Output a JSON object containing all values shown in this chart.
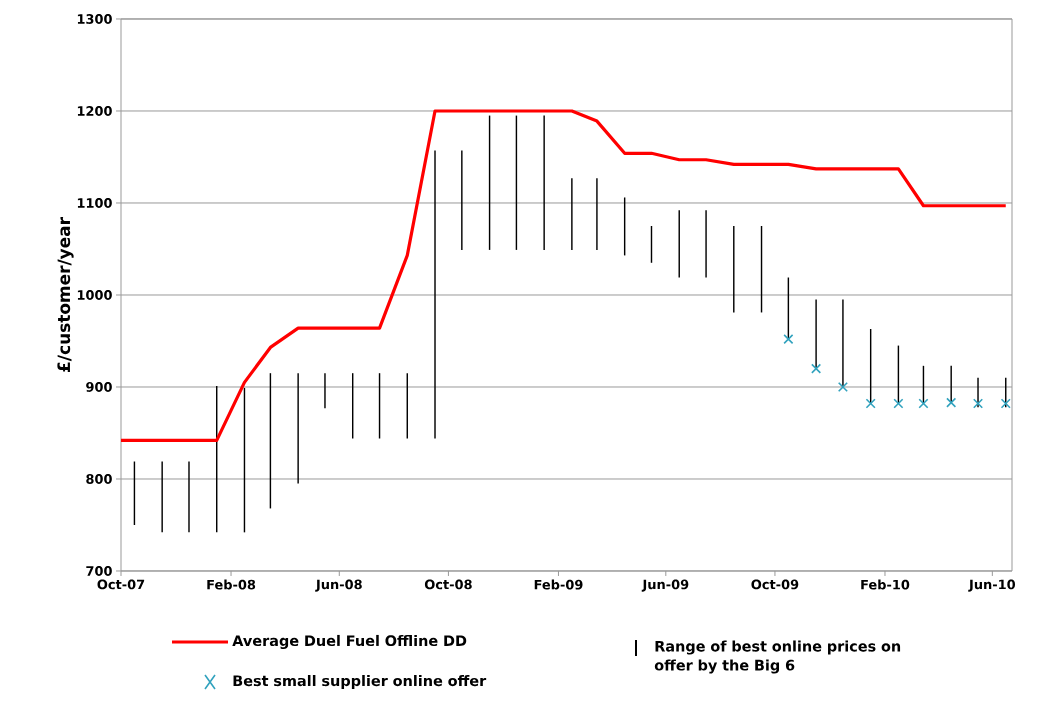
{
  "chart_data": {
    "type": "line",
    "ylabel": "£/customer/year",
    "x": [
      "2007-10-16",
      "2007-11-16",
      "2007-12-16",
      "2008-01-16",
      "2008-02-16",
      "2008-03-16",
      "2008-04-16",
      "2008-05-16",
      "2008-06-16",
      "2008-07-16",
      "2008-08-16",
      "2008-09-16",
      "2008-10-16",
      "2008-11-16",
      "2008-12-16",
      "2009-01-16",
      "2009-02-16",
      "2009-03-16",
      "2009-04-16",
      "2009-05-16",
      "2009-06-16",
      "2009-07-16",
      "2009-08-16",
      "2009-09-16",
      "2009-10-16",
      "2009-11-16",
      "2009-12-16",
      "2010-01-16",
      "2010-02-16",
      "2010-03-16",
      "2010-04-16",
      "2010-05-16",
      "2010-06-16"
    ],
    "series": [
      {
        "name": "Average Duel Fuel Offline DD",
        "color": "#ff0000",
        "marker": "none",
        "x": [
          "2007-10-01",
          "2008-01-16",
          "2008-02-16",
          "2008-03-16",
          "2008-04-16",
          "2008-07-16",
          "2008-08-16",
          "2008-09-16",
          "2009-01-16",
          "2009-02-16",
          "2009-03-16",
          "2009-04-16",
          "2009-05-16",
          "2009-06-16",
          "2009-07-16",
          "2009-08-16",
          "2009-09-16",
          "2009-10-16",
          "2009-11-16",
          "2010-01-16",
          "2010-02-16",
          "2010-03-16",
          "2010-06-16"
        ],
        "values": [
          842,
          842,
          905,
          943,
          964,
          964,
          1043,
          1200,
          1200,
          1200,
          1189,
          1154,
          1154,
          1147,
          1147,
          1142,
          1142,
          1142,
          1137,
          1137,
          1137,
          1097,
          1097
        ]
      },
      {
        "name": "Best small supplier online offer",
        "type": "scatter",
        "color": "#31a2be",
        "marker": "cross",
        "x": [
          "2009-10-16",
          "2009-11-16",
          "2009-12-16",
          "2010-01-16",
          "2010-02-16",
          "2010-03-16",
          "2010-04-16",
          "2010-05-16",
          "2010-06-16"
        ],
        "values": [
          952,
          920,
          900,
          882,
          882,
          882,
          883,
          882,
          882
        ]
      },
      {
        "name": "Range of best online prices on offer by the Big 6",
        "type": "bar",
        "color": "#000000",
        "base": [
          750,
          742,
          742,
          742,
          742,
          768,
          795,
          877,
          844,
          844,
          844,
          844,
          1049,
          1049,
          1049,
          1049,
          1049,
          1049,
          1043,
          1035,
          1019,
          1019,
          981,
          981,
          952,
          920,
          900,
          882,
          882,
          882,
          883,
          878,
          878
        ],
        "values": [
          69,
          77,
          77,
          159,
          157,
          147,
          120,
          38,
          71,
          71,
          71,
          313,
          108,
          146,
          146,
          146,
          78,
          78,
          63,
          40,
          73,
          73,
          94,
          94,
          67,
          75,
          95,
          81,
          63,
          41,
          40,
          32,
          32
        ]
      }
    ],
    "xlim": [
      "2007-10-01",
      "2010-06-23"
    ],
    "xticks": [
      {
        "value": "2007-10-01",
        "label": "Oct-07"
      },
      {
        "value": "2008-02-01",
        "label": "Feb-08"
      },
      {
        "value": "2008-06-01",
        "label": "Jun-08"
      },
      {
        "value": "2008-10-01",
        "label": "Oct-08"
      },
      {
        "value": "2009-02-01",
        "label": "Feb-09"
      },
      {
        "value": "2009-06-01",
        "label": "Jun-09"
      },
      {
        "value": "2009-10-01",
        "label": "Oct-09"
      },
      {
        "value": "2010-02-01",
        "label": "Feb-10"
      },
      {
        "value": "2010-06-01",
        "label": "Jun-10"
      }
    ],
    "ylim": [
      700,
      1300
    ],
    "yticks": [
      700,
      800,
      900,
      1000,
      1100,
      1200,
      1300
    ],
    "grid": "y",
    "legend": "bottom"
  }
}
